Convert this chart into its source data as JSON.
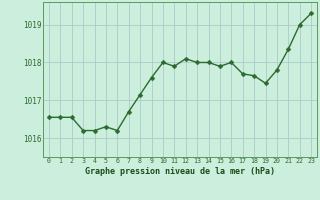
{
  "x": [
    0,
    1,
    2,
    3,
    4,
    5,
    6,
    7,
    8,
    9,
    10,
    11,
    12,
    13,
    14,
    15,
    16,
    17,
    18,
    19,
    20,
    21,
    22,
    23
  ],
  "y": [
    1016.55,
    1016.55,
    1016.55,
    1016.2,
    1016.2,
    1016.3,
    1016.2,
    1016.7,
    1017.15,
    1017.6,
    1018.0,
    1017.9,
    1018.1,
    1018.0,
    1018.0,
    1017.9,
    1018.0,
    1017.7,
    1017.65,
    1017.45,
    1017.8,
    1018.35,
    1019.0,
    1019.3
  ],
  "line_color": "#2d6a2d",
  "marker_color": "#2d6a2d",
  "bg_color": "#cceedd",
  "grid_color": "#aacccc",
  "xlabel": "Graphe pression niveau de la mer (hPa)",
  "xlabel_color": "#1a4d1a",
  "tick_color": "#2d6a2d",
  "ylim": [
    1015.5,
    1019.6
  ],
  "yticks": [
    1016,
    1017,
    1018,
    1019
  ],
  "xlim": [
    -0.5,
    23.5
  ],
  "xticks": [
    0,
    1,
    2,
    3,
    4,
    5,
    6,
    7,
    8,
    9,
    10,
    11,
    12,
    13,
    14,
    15,
    16,
    17,
    18,
    19,
    20,
    21,
    22,
    23
  ],
  "marker_size": 2.5,
  "line_width": 1.0
}
